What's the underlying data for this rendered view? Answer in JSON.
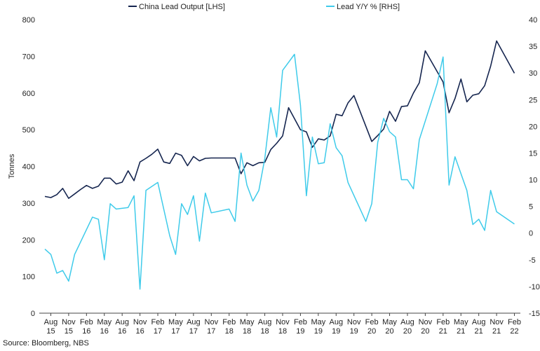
{
  "chart_data": {
    "type": "line",
    "title": "",
    "ylabel": "Tonnes",
    "y2label": "",
    "ylim": [
      0,
      800
    ],
    "y2lim": [
      -15,
      40
    ],
    "yticks": [
      0,
      100,
      200,
      300,
      400,
      500,
      600,
      700,
      800
    ],
    "y2ticks": [
      -15,
      -10,
      -5,
      0,
      5,
      10,
      15,
      20,
      25,
      30,
      35,
      40
    ],
    "grid": false,
    "legend": "top-center",
    "x_ticks": [
      {
        "month": "Aug",
        "year": "15"
      },
      {
        "month": "Nov",
        "year": "15"
      },
      {
        "month": "Feb",
        "year": "16"
      },
      {
        "month": "May",
        "year": "16"
      },
      {
        "month": "Aug",
        "year": "16"
      },
      {
        "month": "Nov",
        "year": "16"
      },
      {
        "month": "Feb",
        "year": "17"
      },
      {
        "month": "May",
        "year": "17"
      },
      {
        "month": "Aug",
        "year": "17"
      },
      {
        "month": "Nov",
        "year": "17"
      },
      {
        "month": "Feb",
        "year": "18"
      },
      {
        "month": "May",
        "year": "18"
      },
      {
        "month": "Aug",
        "year": "18"
      },
      {
        "month": "Nov",
        "year": "18"
      },
      {
        "month": "Feb",
        "year": "19"
      },
      {
        "month": "May",
        "year": "19"
      },
      {
        "month": "Aug",
        "year": "19"
      },
      {
        "month": "Nov",
        "year": "19"
      },
      {
        "month": "Feb",
        "year": "20"
      },
      {
        "month": "May",
        "year": "20"
      },
      {
        "month": "Aug",
        "year": "20"
      },
      {
        "month": "Nov",
        "year": "20"
      },
      {
        "month": "Feb",
        "year": "21"
      },
      {
        "month": "May",
        "year": "21"
      },
      {
        "month": "Aug",
        "year": "21"
      },
      {
        "month": "Nov",
        "year": "21"
      },
      {
        "month": "Feb",
        "year": "22"
      }
    ],
    "x": [
      "2015-07",
      "2015-08",
      "2015-09",
      "2015-10",
      "2015-11",
      "2015-12",
      "2016-01",
      "2016-02",
      "2016-03",
      "2016-04",
      "2016-05",
      "2016-06",
      "2016-07",
      "2016-08",
      "2016-09",
      "2016-10",
      "2016-11",
      "2016-12",
      "2017-01",
      "2017-02",
      "2017-03",
      "2017-04",
      "2017-05",
      "2017-06",
      "2017-07",
      "2017-08",
      "2017-09",
      "2017-10",
      "2017-11",
      "2017-12",
      "2018-01",
      "2018-02",
      "2018-03",
      "2018-04",
      "2018-05",
      "2018-06",
      "2018-07",
      "2018-08",
      "2018-09",
      "2018-10",
      "2018-11",
      "2018-12",
      "2019-01",
      "2019-02",
      "2019-03",
      "2019-04",
      "2019-05",
      "2019-06",
      "2019-07",
      "2019-08",
      "2019-09",
      "2019-10",
      "2019-11",
      "2019-12",
      "2020-01",
      "2020-02",
      "2020-03",
      "2020-04",
      "2020-05",
      "2020-06",
      "2020-07",
      "2020-08",
      "2020-09",
      "2020-10",
      "2020-11",
      "2020-12",
      "2021-01",
      "2021-02",
      "2021-03",
      "2021-04",
      "2021-05",
      "2021-06",
      "2021-07",
      "2021-08",
      "2021-09",
      "2021-10",
      "2021-11",
      "2021-12",
      "2022-01",
      "2022-02",
      "2022-03"
    ],
    "series": [
      {
        "name": "China Lead Output [LHS]",
        "axis": "left",
        "color": "#15254f",
        "values": [
          318,
          315,
          323,
          340,
          313,
          325,
          337,
          348,
          340,
          346,
          368,
          368,
          352,
          357,
          388,
          361,
          412,
          422,
          433,
          447,
          412,
          408,
          436,
          430,
          402,
          427,
          415,
          422,
          423,
          423,
          423,
          423,
          423,
          380,
          410,
          402,
          410,
          411,
          446,
          463,
          483,
          560,
          null,
          500,
          494,
          452,
          475,
          472,
          483,
          542,
          538,
          573,
          593,
          null,
          null,
          468,
          484,
          502,
          550,
          523,
          563,
          565,
          600,
          628,
          715,
          null,
          null,
          630,
          546,
          585,
          638,
          576,
          594,
          598,
          620,
          673,
          742,
          null,
          null,
          654,
          null
        ]
      },
      {
        "name": "Lead Y/Y % [RHS]",
        "axis": "right",
        "color": "#3fcbea",
        "values": [
          -3,
          -4,
          -7.5,
          -7,
          -9,
          -4,
          null,
          null,
          3,
          2.6,
          -5,
          5.5,
          4.5,
          null,
          4.8,
          7,
          -10.5,
          8,
          null,
          9.5,
          null,
          -0.5,
          -4,
          5.5,
          3.5,
          7,
          -1.5,
          7.5,
          3.8,
          null,
          null,
          4.5,
          2.2,
          15,
          9,
          6,
          8,
          14,
          23.5,
          18,
          30.5,
          null,
          33.5,
          24,
          7,
          18,
          13,
          13.2,
          20.5,
          16,
          14.5,
          9.5,
          null,
          null,
          2.2,
          5.5,
          17,
          21.5,
          19,
          18,
          10,
          10,
          8.3,
          17.5,
          null,
          null,
          28,
          33,
          9,
          14.3,
          null,
          8,
          1.6,
          2.6,
          0.5,
          8,
          4,
          null,
          null,
          1.7,
          null
        ]
      }
    ]
  },
  "source_text": "Source: Bloomberg, NBS"
}
